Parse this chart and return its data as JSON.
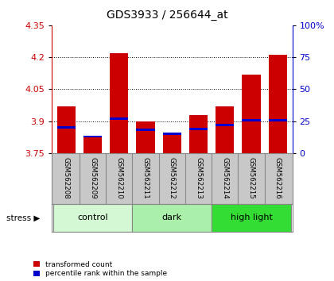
{
  "title": "GDS3933 / 256644_at",
  "samples": [
    "GSM562208",
    "GSM562209",
    "GSM562210",
    "GSM562211",
    "GSM562212",
    "GSM562213",
    "GSM562214",
    "GSM562215",
    "GSM562216"
  ],
  "red_values": [
    3.97,
    3.83,
    4.22,
    3.9,
    3.84,
    3.93,
    3.97,
    4.12,
    4.21
  ],
  "blue_values": [
    20,
    13,
    27,
    18,
    15,
    19,
    22,
    26,
    26
  ],
  "ylim_left": [
    3.75,
    4.35
  ],
  "ylim_right": [
    0,
    100
  ],
  "yticks_left": [
    3.75,
    3.9,
    4.05,
    4.2,
    4.35
  ],
  "yticks_right": [
    0,
    25,
    50,
    75,
    100
  ],
  "ytick_labels_left": [
    "3.75",
    "3.9",
    "4.05",
    "4.2",
    "4.35"
  ],
  "ytick_labels_right": [
    "0",
    "25",
    "50",
    "75",
    "100%"
  ],
  "grid_lines": [
    3.9,
    4.05,
    4.2
  ],
  "groups": [
    {
      "label": "control",
      "indices": [
        0,
        1,
        2
      ],
      "color": "#d4f7d4"
    },
    {
      "label": "dark",
      "indices": [
        3,
        4,
        5
      ],
      "color": "#aaf0aa"
    },
    {
      "label": "high light",
      "indices": [
        6,
        7,
        8
      ],
      "color": "#33dd33"
    }
  ],
  "bar_width": 0.7,
  "red_color": "#cc0000",
  "blue_color": "#0000cc",
  "background_color": "#ffffff",
  "sample_bg_color": "#c8c8c8",
  "left_axis_color": "#cc0000",
  "right_axis_color": "#0000cc",
  "legend_labels": [
    "transformed count",
    "percentile rank within the sample"
  ],
  "stress_label": "stress ▶"
}
